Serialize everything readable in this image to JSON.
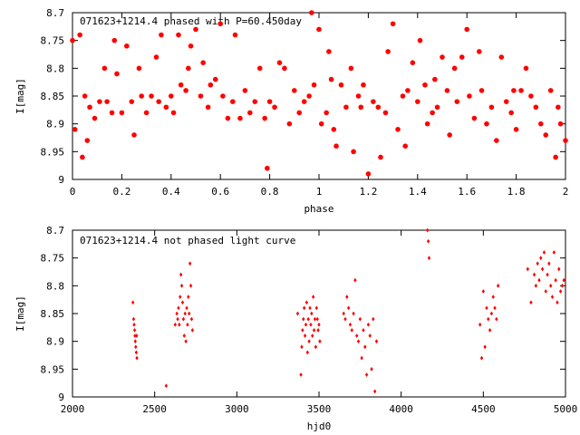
{
  "colors": {
    "points": "#ff0000",
    "axes": "#000000",
    "background": "#ffffff"
  },
  "chart_data": [
    {
      "type": "scatter",
      "title": "071623+1214.4 phased with P=60.450day",
      "xlabel": "phase",
      "ylabel": "I[mag]",
      "xlim": [
        0,
        2
      ],
      "ylim": [
        8.7,
        9.0
      ],
      "y_reversed": true,
      "xticks": [
        "0",
        "0.2",
        "0.4",
        "0.6",
        "0.8",
        "1",
        "1.2",
        "1.4",
        "1.6",
        "1.8",
        "2"
      ],
      "yticks": [
        "8.7",
        "8.75",
        "8.8",
        "8.85",
        "8.9",
        "8.95",
        "9"
      ],
      "marker": "filled-circle",
      "series": [
        {
          "x": [
            0.0,
            0.01,
            0.03,
            0.04,
            0.05,
            0.06,
            0.07,
            0.09,
            0.11,
            0.13,
            0.14,
            0.16,
            0.17,
            0.18,
            0.2,
            0.22,
            0.24,
            0.25,
            0.27,
            0.28,
            0.3,
            0.32,
            0.34,
            0.35,
            0.36,
            0.38,
            0.4,
            0.41,
            0.43,
            0.44,
            0.46,
            0.47,
            0.48,
            0.5,
            0.52,
            0.53,
            0.55,
            0.56,
            0.58,
            0.6,
            0.61,
            0.63,
            0.65,
            0.66,
            0.68,
            0.7,
            0.72,
            0.74,
            0.76,
            0.78,
            0.79,
            0.8,
            0.82,
            0.84,
            0.86,
            0.88,
            0.9,
            0.92,
            0.94,
            0.96,
            0.97,
            0.98,
            1.0,
            1.01,
            1.03,
            1.04,
            1.05,
            1.06,
            1.07,
            1.09,
            1.11,
            1.13,
            1.14,
            1.16,
            1.17,
            1.18,
            1.2,
            1.22,
            1.24,
            1.25,
            1.27,
            1.28,
            1.3,
            1.32,
            1.34,
            1.35,
            1.36,
            1.38,
            1.4,
            1.41,
            1.43,
            1.44,
            1.46,
            1.47,
            1.48,
            1.5,
            1.52,
            1.53,
            1.55,
            1.56,
            1.58,
            1.6,
            1.61,
            1.63,
            1.65,
            1.66,
            1.68,
            1.7,
            1.72,
            1.74,
            1.76,
            1.78,
            1.79,
            1.8,
            1.82,
            1.84,
            1.86,
            1.88,
            1.9,
            1.92,
            1.94,
            1.96,
            1.97,
            1.98,
            2.0
          ],
          "y": [
            8.75,
            8.91,
            8.74,
            8.96,
            8.85,
            8.93,
            8.87,
            8.89,
            8.86,
            8.8,
            8.86,
            8.88,
            8.75,
            8.81,
            8.88,
            8.76,
            8.86,
            8.92,
            8.8,
            8.85,
            8.88,
            8.85,
            8.78,
            8.86,
            8.74,
            8.87,
            8.85,
            8.88,
            8.74,
            8.83,
            8.84,
            8.8,
            8.76,
            8.73,
            8.85,
            8.79,
            8.87,
            8.83,
            8.82,
            8.72,
            8.85,
            8.89,
            8.86,
            8.74,
            8.89,
            8.84,
            8.88,
            8.86,
            8.8,
            8.89,
            8.98,
            8.86,
            8.87,
            8.79,
            8.8,
            8.9,
            8.84,
            8.88,
            8.86,
            8.85,
            8.7,
            8.83,
            8.73,
            8.9,
            8.88,
            8.77,
            8.82,
            8.91,
            8.94,
            8.83,
            8.87,
            8.8,
            8.95,
            8.85,
            8.87,
            8.83,
            8.99,
            8.86,
            8.87,
            8.96,
            8.88,
            8.77,
            8.72,
            8.91,
            8.85,
            8.94,
            8.84,
            8.79,
            8.86,
            8.75,
            8.83,
            8.9,
            8.88,
            8.82,
            8.87,
            8.78,
            8.84,
            8.92,
            8.8,
            8.86,
            8.78,
            8.73,
            8.85,
            8.89,
            8.77,
            8.84,
            8.9,
            8.87,
            8.93,
            8.78,
            8.86,
            8.88,
            8.84,
            8.91,
            8.84,
            8.8,
            8.85,
            8.87,
            8.9,
            8.92,
            8.84,
            8.96,
            8.87,
            8.9,
            8.93
          ]
        }
      ]
    },
    {
      "type": "scatter",
      "title": "071623+1214.4 not phased light curve",
      "xlabel": "hjd0",
      "ylabel": "I[mag]",
      "xlim": [
        2000,
        5000
      ],
      "ylim": [
        8.7,
        9.0
      ],
      "y_reversed": true,
      "xticks": [
        "2000",
        "2500",
        "3000",
        "3500",
        "4000",
        "4500",
        "5000"
      ],
      "yticks": [
        "8.7",
        "8.75",
        "8.8",
        "8.85",
        "8.9",
        "8.95",
        "9"
      ],
      "marker": "small-diamond",
      "series": [
        {
          "x": [
            2368,
            2372,
            2375,
            2378,
            2380,
            2382,
            2385,
            2388,
            2390,
            2392,
            2570,
            2625,
            2635,
            2640,
            2645,
            2650,
            2655,
            2660,
            2665,
            2670,
            2675,
            2680,
            2685,
            2690,
            2695,
            2700,
            2705,
            2710,
            2715,
            2720,
            2725,
            2730,
            3370,
            3390,
            3395,
            3400,
            3405,
            3410,
            3415,
            3420,
            3425,
            3430,
            3435,
            3440,
            3445,
            3450,
            3455,
            3460,
            3465,
            3470,
            3475,
            3480,
            3485,
            3490,
            3495,
            3500,
            3505,
            3650,
            3660,
            3670,
            3680,
            3690,
            3700,
            3710,
            3720,
            3730,
            3740,
            3750,
            3760,
            3770,
            3780,
            3790,
            3800,
            3810,
            3820,
            3830,
            3840,
            3850,
            4160,
            4165,
            4170,
            4480,
            4490,
            4500,
            4510,
            4520,
            4530,
            4540,
            4550,
            4560,
            4570,
            4580,
            4590,
            4770,
            4790,
            4810,
            4820,
            4830,
            4840,
            4850,
            4860,
            4870,
            4880,
            4890,
            4900,
            4910,
            4920,
            4930,
            4940,
            4950,
            4960,
            4970,
            4980,
            4990
          ],
          "y": [
            8.83,
            8.86,
            8.87,
            8.88,
            8.89,
            8.9,
            8.91,
            8.92,
            8.89,
            8.93,
            8.98,
            8.87,
            8.85,
            8.86,
            8.84,
            8.87,
            8.82,
            8.78,
            8.8,
            8.83,
            8.86,
            8.89,
            8.85,
            8.9,
            8.84,
            8.87,
            8.82,
            8.85,
            8.76,
            8.8,
            8.86,
            8.88,
            8.85,
            8.96,
            8.91,
            8.88,
            8.86,
            8.84,
            8.89,
            8.87,
            8.83,
            8.92,
            8.86,
            8.9,
            8.84,
            8.87,
            8.85,
            8.89,
            8.82,
            8.88,
            8.86,
            8.91,
            8.84,
            8.86,
            8.88,
            8.87,
            8.9,
            8.85,
            8.86,
            8.82,
            8.84,
            8.87,
            8.88,
            8.85,
            8.79,
            8.89,
            8.9,
            8.86,
            8.93,
            8.88,
            8.91,
            8.96,
            8.87,
            8.89,
            8.95,
            8.86,
            8.99,
            8.9,
            8.7,
            8.72,
            8.75,
            8.87,
            8.93,
            8.81,
            8.91,
            8.84,
            8.86,
            8.88,
            8.85,
            8.82,
            8.84,
            8.86,
            8.8,
            8.77,
            8.83,
            8.78,
            8.8,
            8.76,
            8.79,
            8.75,
            8.77,
            8.74,
            8.81,
            8.78,
            8.76,
            8.8,
            8.82,
            8.74,
            8.79,
            8.83,
            8.77,
            8.81,
            8.8,
            8.79
          ]
        }
      ]
    }
  ]
}
